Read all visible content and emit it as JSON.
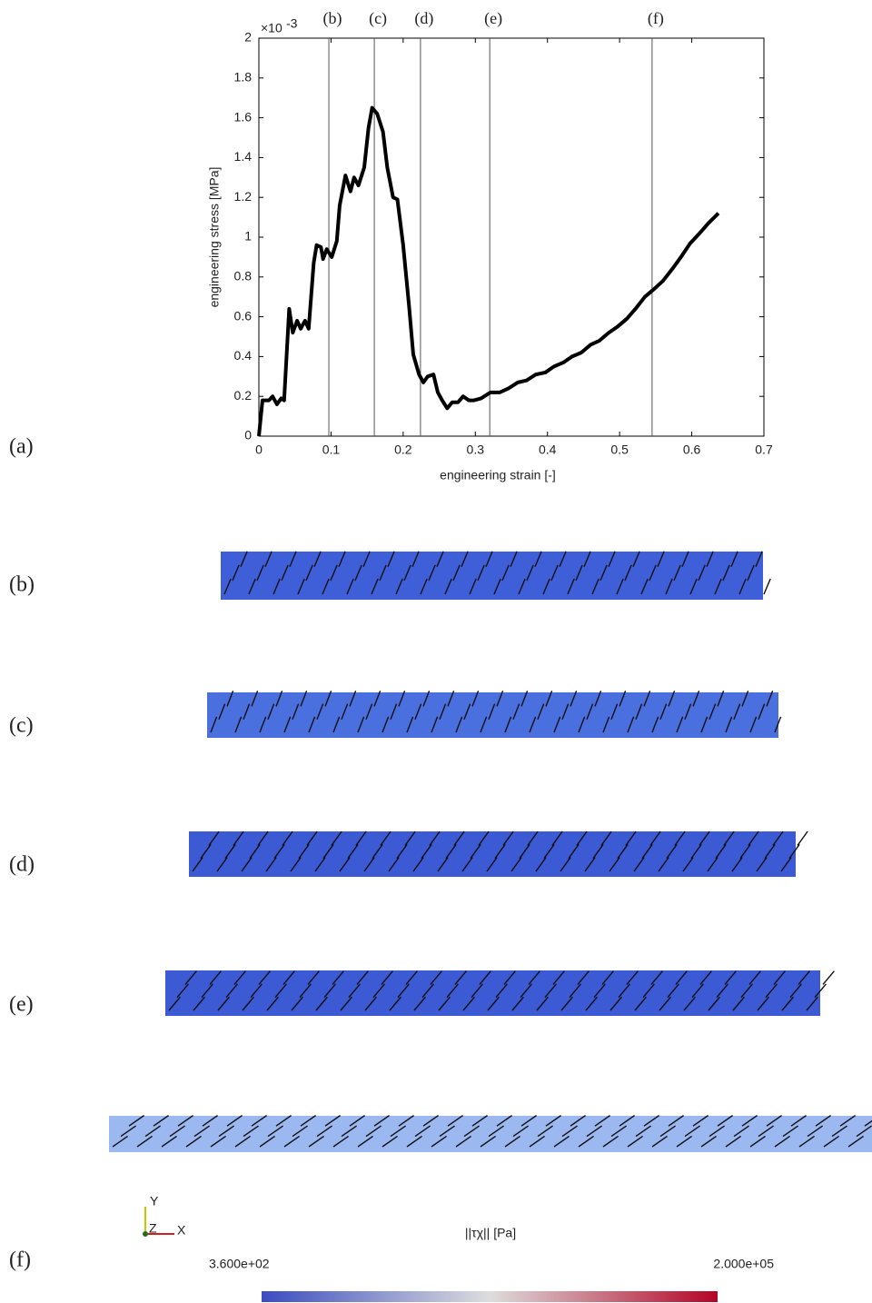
{
  "chart_data": {
    "type": "line",
    "x_label": "engineering strain [-]",
    "y_label": "engineering stress [MPa]",
    "y_scale_base": "×10",
    "y_scale_exponent": "-3",
    "color": "#000000",
    "x": [
      0,
      0.005,
      0.014,
      0.019,
      0.025,
      0.031,
      0.035,
      0.042,
      0.047,
      0.053,
      0.058,
      0.064,
      0.069,
      0.076,
      0.08,
      0.086,
      0.089,
      0.094,
      0.101,
      0.108,
      0.112,
      0.12,
      0.127,
      0.132,
      0.138,
      0.146,
      0.152,
      0.157,
      0.164,
      0.172,
      0.178,
      0.186,
      0.192,
      0.2,
      0.208,
      0.214,
      0.222,
      0.228,
      0.234,
      0.242,
      0.248,
      0.254,
      0.261,
      0.268,
      0.276,
      0.283,
      0.291,
      0.298,
      0.308,
      0.321,
      0.334,
      0.346,
      0.359,
      0.371,
      0.384,
      0.397,
      0.409,
      0.422,
      0.434,
      0.447,
      0.46,
      0.472,
      0.485,
      0.497,
      0.51,
      0.522,
      0.535,
      0.548,
      0.56,
      0.573,
      0.585,
      0.598,
      0.611,
      0.623,
      0.637
    ],
    "values": [
      0,
      0.18,
      0.18,
      0.2,
      0.16,
      0.19,
      0.18,
      0.64,
      0.52,
      0.58,
      0.54,
      0.58,
      0.54,
      0.87,
      0.96,
      0.95,
      0.89,
      0.94,
      0.9,
      0.98,
      1.16,
      1.31,
      1.23,
      1.3,
      1.26,
      1.35,
      1.55,
      1.65,
      1.62,
      1.53,
      1.35,
      1.2,
      1.19,
      0.96,
      0.66,
      0.41,
      0.31,
      0.27,
      0.3,
      0.31,
      0.22,
      0.18,
      0.14,
      0.17,
      0.17,
      0.2,
      0.18,
      0.18,
      0.19,
      0.22,
      0.22,
      0.24,
      0.27,
      0.28,
      0.31,
      0.32,
      0.35,
      0.37,
      0.4,
      0.42,
      0.46,
      0.48,
      0.52,
      0.55,
      0.59,
      0.64,
      0.7,
      0.74,
      0.78,
      0.84,
      0.9,
      0.97,
      1.02,
      1.07,
      1.12
    ],
    "xlim": [
      0,
      0.7
    ],
    "xticks": [
      0,
      0.1,
      0.2,
      0.3,
      0.4,
      0.5,
      0.6,
      0.7
    ],
    "ylim": [
      0,
      2
    ],
    "yticks": [
      0,
      0.2,
      0.4,
      0.6,
      0.8,
      1,
      1.2,
      1.4,
      1.6,
      1.8,
      2
    ],
    "markers": [
      {
        "x": 0.097,
        "label": "(b)"
      },
      {
        "x": 0.16,
        "label": "(c)"
      },
      {
        "x": 0.224,
        "label": "(d)"
      },
      {
        "x": 0.32,
        "label": "(e)"
      },
      {
        "x": 0.545,
        "label": "(f)"
      }
    ]
  },
  "panels": [
    "(a)",
    "(b)",
    "(c)",
    "(d)",
    "(e)",
    "(f)"
  ],
  "triad": [
    "Y",
    "Z",
    "X"
  ],
  "colorbar": {
    "title": "||τχ|| [Pa]",
    "min": "3.600e+02",
    "max": "2.000e+05"
  }
}
